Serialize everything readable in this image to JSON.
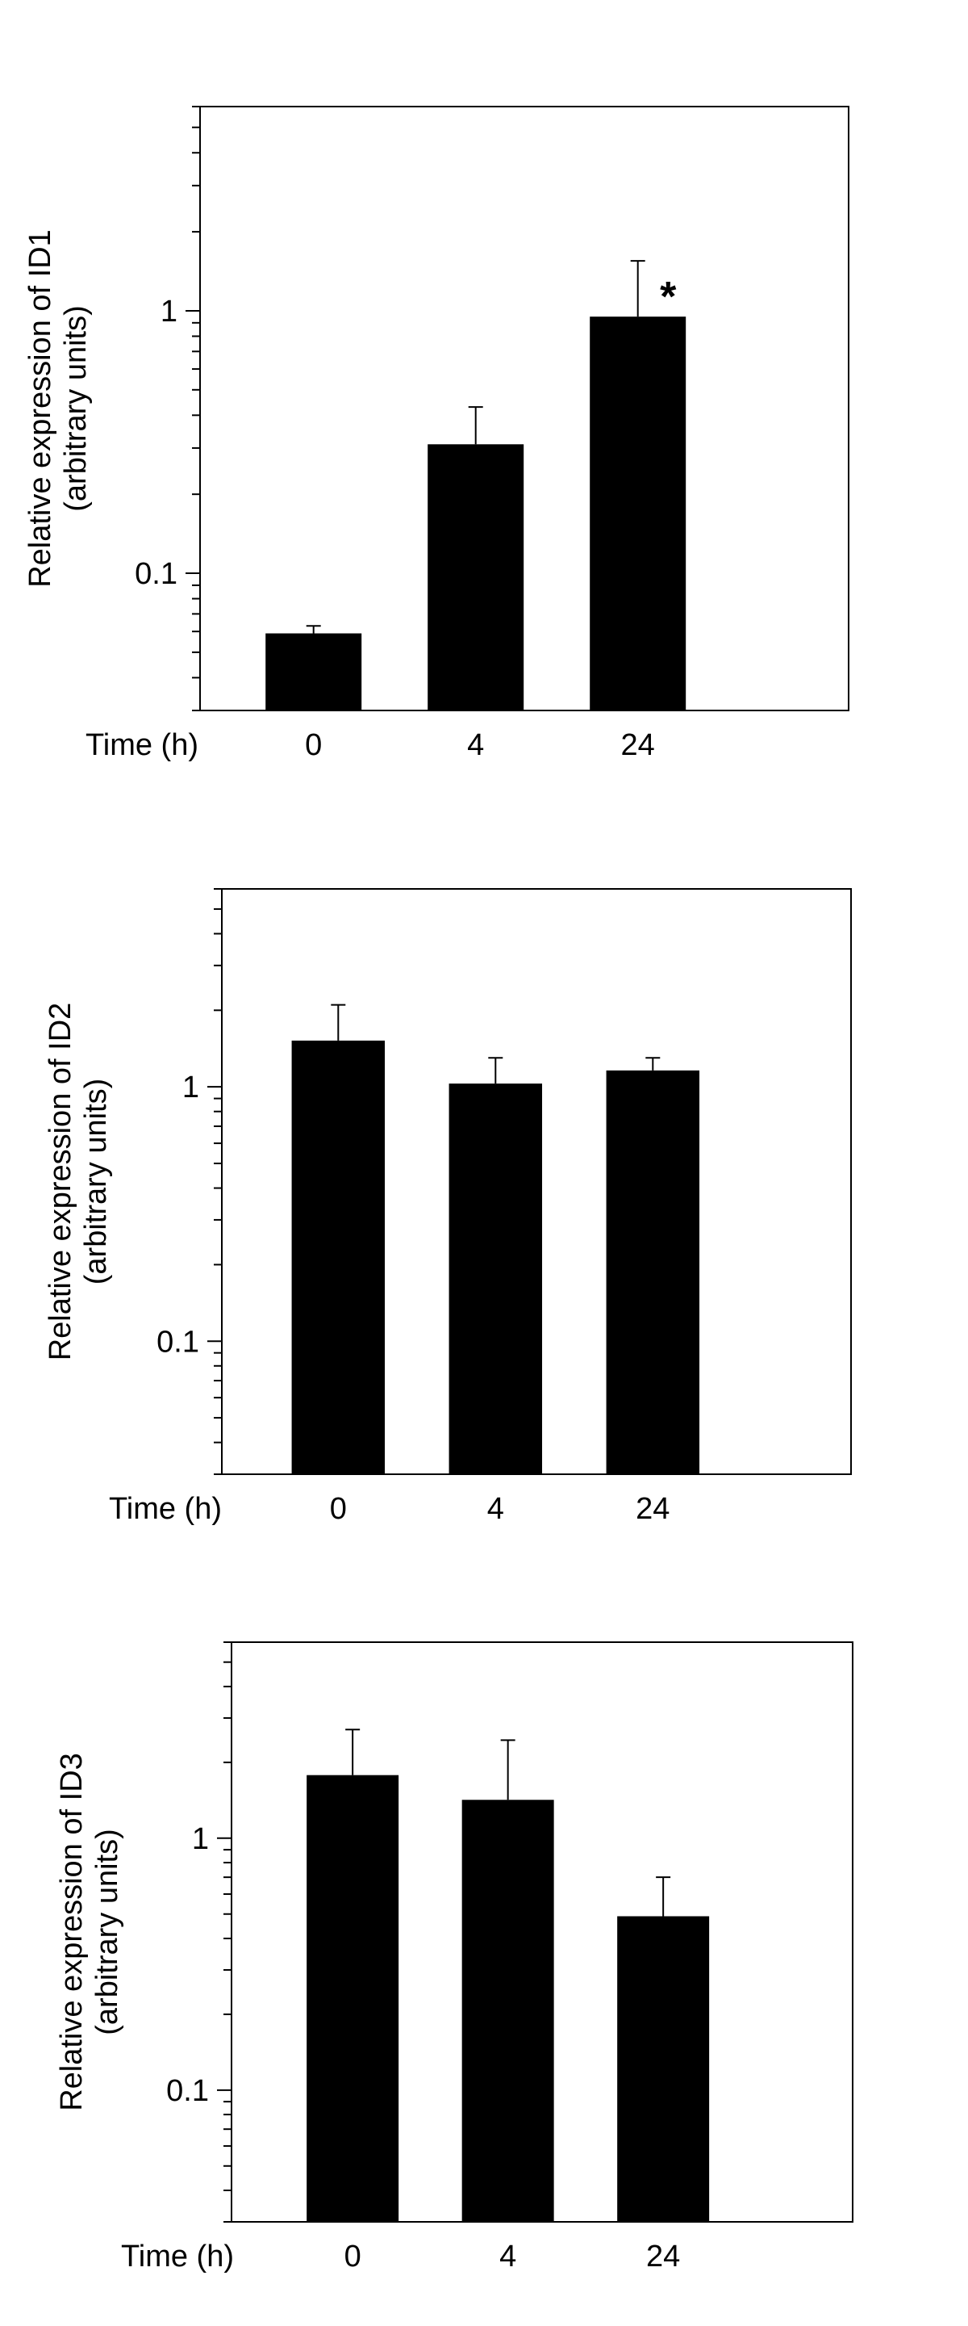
{
  "chart_data": [
    {
      "type": "bar",
      "scale": "log",
      "ylabel_lines": [
        "Relative expression of ID1",
        "(arbitrary units)"
      ],
      "xlabel": "Time (h)",
      "categories": [
        "0",
        "4",
        "24"
      ],
      "values": [
        0.059,
        0.31,
        0.95
      ],
      "errors_upper": [
        0.063,
        0.43,
        1.55
      ],
      "ylim": [
        0.03,
        6
      ],
      "yticks": [
        0.1,
        1
      ],
      "ytick_labels": [
        "0.1",
        "1"
      ],
      "annotations": [
        {
          "category": "24",
          "text": "*"
        }
      ],
      "colors": {
        "bar": "#000000"
      }
    },
    {
      "type": "bar",
      "scale": "log",
      "ylabel_lines": [
        "Relative expression of ID2",
        "(arbitrary units)"
      ],
      "xlabel": "Time (h)",
      "categories": [
        "0",
        "4",
        "24"
      ],
      "values": [
        1.52,
        1.03,
        1.16
      ],
      "errors_upper": [
        2.1,
        1.3,
        1.3
      ],
      "ylim": [
        0.03,
        6
      ],
      "yticks": [
        0.1,
        1
      ],
      "ytick_labels": [
        "0.1",
        "1"
      ],
      "annotations": [],
      "colors": {
        "bar": "#000000"
      }
    },
    {
      "type": "bar",
      "scale": "log",
      "ylabel_lines": [
        "Relative expression of ID3",
        "(arbitrary units)"
      ],
      "xlabel": "Time (h)",
      "categories": [
        "0",
        "4",
        "24"
      ],
      "values": [
        1.78,
        1.42,
        0.49
      ],
      "errors_upper": [
        2.7,
        2.45,
        0.7
      ],
      "ylim": [
        0.03,
        6
      ],
      "yticks": [
        0.1,
        1
      ],
      "ytick_labels": [
        "0.1",
        "1"
      ],
      "annotations": [],
      "colors": {
        "bar": "#000000"
      }
    }
  ]
}
